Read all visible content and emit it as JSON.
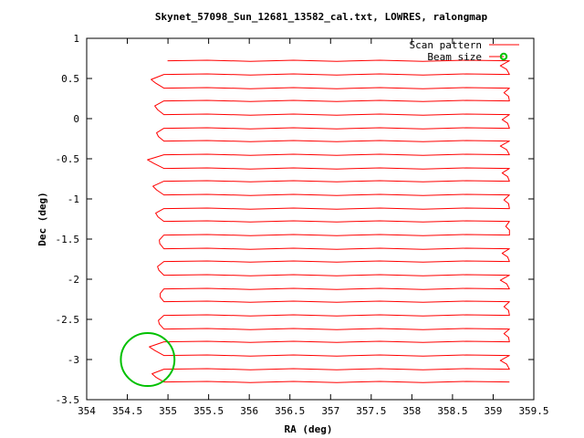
{
  "chart_data": {
    "type": "line",
    "title": "Skynet_57098_Sun_12681_13582_cal.txt, LOWRES, ralongmap",
    "xlabel": "RA (deg)",
    "ylabel": "Dec (deg)",
    "xlim": [
      354,
      359.5
    ],
    "ylim": [
      -3.5,
      1
    ],
    "x_ticks": [
      354,
      354.5,
      355,
      355.5,
      356,
      356.5,
      357,
      357.5,
      358,
      358.5,
      359,
      359.5
    ],
    "x_tick_labels": [
      "354",
      "354.5",
      "355",
      "355.5",
      "356",
      "356.5",
      "357",
      "357.5",
      "358",
      "358.5",
      "359",
      "359.5"
    ],
    "y_ticks": [
      1,
      0.5,
      0,
      -0.5,
      -1,
      -1.5,
      -2,
      -2.5,
      -3,
      -3.5
    ],
    "y_tick_labels": [
      "1",
      "0.5",
      "0",
      "-0.5",
      "-1",
      "-1.5",
      "-2",
      "-2.5",
      "-3",
      "-3.5"
    ],
    "legend_position": "top-right",
    "series": [
      {
        "name": "Scan pattern",
        "color": "#ff0000",
        "ra_min": 354.95,
        "ra_max": 359.2,
        "dec_rows": [
          0.72,
          0.55,
          0.38,
          0.22,
          0.05,
          -0.12,
          -0.28,
          -0.45,
          -0.62,
          -0.78,
          -0.95,
          -1.12,
          -1.28,
          -1.45,
          -1.62,
          -1.78,
          -1.95,
          -2.12,
          -2.28,
          -2.45,
          -2.62,
          -2.78,
          -2.95,
          -3.12,
          -3.28
        ]
      },
      {
        "name": "Beam size",
        "color": "#00c000",
        "center": [
          354.75,
          -3.0
        ],
        "radius_deg": 0.33
      }
    ]
  }
}
